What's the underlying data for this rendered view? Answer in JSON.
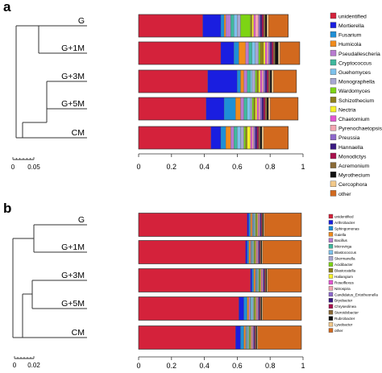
{
  "palette": {
    "unidentified": "#d4223b",
    "Mortierella": "#1a1ee0",
    "Fusarium": "#1f8fd6",
    "Humicola": "#f08b1c",
    "Pseudallescheria": "#b87ad0",
    "Cryptococcus": "#3fb89d",
    "Guehomyces": "#7dc2ec",
    "Monographella": "#a7a7d2",
    "Wardomyces": "#7dd414",
    "Schizothecium": "#8e7f1c",
    "Nectria": "#f7f22a",
    "Chaetomium": "#e455d2",
    "Pyrenochaetopsis": "#f3a6b2",
    "Preussia": "#8d68cc",
    "Hannaella": "#3a1a82",
    "Monodictys": "#a80f4c",
    "Acremonium": "#8a6a36",
    "Myrothecium": "#111111",
    "Cercophora": "#f2c98a",
    "other": "#d2691e",
    "Arthrobacter": "#1a1ee0",
    "Sphingomonas": "#1f8fd6",
    "Gaiella": "#f08b1c",
    "Bacillus": "#b87ad0",
    "Microvirga": "#3fb89d",
    "Blastococcus": "#7dc2ec",
    "Skermanella": "#a7a7d2",
    "Acidibacter": "#7dd414",
    "Blastocatella": "#8e7f1c",
    "Haliangium": "#f7f22a",
    "Roseiflexus": "#e455d2",
    "Nitrospira": "#f3a6b2",
    "Candidatus_Entotheonella": "#8d68cc",
    "Bryobacter": "#3a1a82",
    "Chryseolinea": "#a80f4c",
    "Steroidobacter": "#8a6a36",
    "Rubrobacter": "#111111",
    "Lysobacter": "#f2c98a"
  },
  "panels": {
    "a": {
      "letter": "a",
      "tree_scale": {
        "start": "0",
        "end": "0.05"
      },
      "chart_data": {
        "type": "bar",
        "orientation": "horizontal",
        "stacked": true,
        "title": "",
        "xlabel": "",
        "ylabel": "",
        "xlim": [
          0,
          1
        ],
        "x_ticks": [
          "0",
          "0.2",
          "0.4",
          "0.6",
          "0.8",
          "1"
        ],
        "categories": [
          "G",
          "G+1M",
          "G+3M",
          "G+5M",
          "CM"
        ],
        "legend_position": "right",
        "series": [
          {
            "name": "unidentified",
            "values": [
              0.39,
              0.5,
              0.42,
              0.41,
              0.44
            ]
          },
          {
            "name": "Mortierella",
            "values": [
              0.11,
              0.08,
              0.18,
              0.11,
              0.06
            ]
          },
          {
            "name": "Fusarium",
            "values": [
              0.02,
              0.03,
              0.02,
              0.07,
              0.03
            ]
          },
          {
            "name": "Humicola",
            "values": [
              0.01,
              0.04,
              0.02,
              0.03,
              0.03
            ]
          },
          {
            "name": "Pseudallescheria",
            "values": [
              0.03,
              0.02,
              0.02,
              0.02,
              0.02
            ]
          },
          {
            "name": "Cryptococcus",
            "values": [
              0.02,
              0.02,
              0.02,
              0.02,
              0.02
            ]
          },
          {
            "name": "Guehomyces",
            "values": [
              0.02,
              0.02,
              0.01,
              0.02,
              0.02
            ]
          },
          {
            "name": "Monographella",
            "values": [
              0.02,
              0.02,
              0.02,
              0.01,
              0.02
            ]
          },
          {
            "name": "Wardomyces",
            "values": [
              0.06,
              0.01,
              0.01,
              0.01,
              0.01
            ]
          },
          {
            "name": "Schizothecium",
            "values": [
              0.01,
              0.02,
              0.01,
              0.01,
              0.01
            ]
          },
          {
            "name": "Nectria",
            "values": [
              0.01,
              0.01,
              0.01,
              0.01,
              0.02
            ]
          },
          {
            "name": "Chaetomium",
            "values": [
              0.01,
              0.01,
              0.01,
              0.01,
              0.01
            ]
          },
          {
            "name": "Pyrenochaetopsis",
            "values": [
              0.02,
              0.01,
              0.01,
              0.01,
              0.01
            ]
          },
          {
            "name": "Preussia",
            "values": [
              0.01,
              0.01,
              0.01,
              0.01,
              0.01
            ]
          },
          {
            "name": "Hannaella",
            "values": [
              0.01,
              0.01,
              0.01,
              0.01,
              0.01
            ]
          },
          {
            "name": "Monodictys",
            "values": [
              0.01,
              0.01,
              0.01,
              0.01,
              0.01
            ]
          },
          {
            "name": "Acremonium",
            "values": [
              0.01,
              0.01,
              0.01,
              0.01,
              0.01
            ]
          },
          {
            "name": "Myrothecium",
            "values": [
              0.01,
              0.02,
              0.01,
              0.01,
              0.01
            ]
          },
          {
            "name": "Cercophora",
            "values": [
              0.01,
              0.01,
              0.01,
              0.01,
              0.01
            ]
          },
          {
            "name": "other",
            "values": [
              0.12,
              0.12,
              0.14,
              0.17,
              0.15
            ]
          }
        ]
      }
    },
    "b": {
      "letter": "b",
      "tree_scale": {
        "start": "0",
        "end": "0.02"
      },
      "chart_data": {
        "type": "bar",
        "orientation": "horizontal",
        "stacked": true,
        "title": "",
        "xlabel": "",
        "ylabel": "",
        "xlim": [
          0,
          1
        ],
        "x_ticks": [
          "0",
          "0.2",
          "0.4",
          "0.6",
          "0.8",
          "1"
        ],
        "categories": [
          "G",
          "G+1M",
          "G+3M",
          "G+5M",
          "CM"
        ],
        "legend_position": "right",
        "series": [
          {
            "name": "unidentified",
            "values": [
              0.66,
              0.65,
              0.68,
              0.61,
              0.59
            ]
          },
          {
            "name": "Arthrobacter",
            "values": [
              0.01,
              0.01,
              0.01,
              0.03,
              0.03
            ]
          },
          {
            "name": "Sphingomonas",
            "values": [
              0.01,
              0.01,
              0.01,
              0.02,
              0.02
            ]
          },
          {
            "name": "Gaiella",
            "values": [
              0.01,
              0.01,
              0.01,
              0.01,
              0.01
            ]
          },
          {
            "name": "Bacillus",
            "values": [
              0.005,
              0.005,
              0.005,
              0.01,
              0.005
            ]
          },
          {
            "name": "Microvirga",
            "values": [
              0.005,
              0.005,
              0.005,
              0.005,
              0.005
            ]
          },
          {
            "name": "Blastococcus",
            "values": [
              0.005,
              0.005,
              0.005,
              0.01,
              0.005
            ]
          },
          {
            "name": "Skermanella",
            "values": [
              0.005,
              0.005,
              0.005,
              0.005,
              0.005
            ]
          },
          {
            "name": "Acidibacter",
            "values": [
              0.005,
              0.005,
              0.005,
              0.005,
              0.005
            ]
          },
          {
            "name": "Blastocatella",
            "values": [
              0.005,
              0.005,
              0.005,
              0.005,
              0.005
            ]
          },
          {
            "name": "Haliangium",
            "values": [
              0.005,
              0.005,
              0.005,
              0.005,
              0.005
            ]
          },
          {
            "name": "Roseiflexus",
            "values": [
              0.005,
              0.005,
              0.005,
              0.005,
              0.005
            ]
          },
          {
            "name": "Nitrospira",
            "values": [
              0.005,
              0.005,
              0.005,
              0.005,
              0.005
            ]
          },
          {
            "name": "Candidatus_Entotheonella",
            "values": [
              0.005,
              0.005,
              0.005,
              0.005,
              0.005
            ]
          },
          {
            "name": "Bryobacter",
            "values": [
              0.005,
              0.005,
              0.005,
              0.005,
              0.005
            ]
          },
          {
            "name": "Chryseolinea",
            "values": [
              0.005,
              0.005,
              0.005,
              0.005,
              0.005
            ]
          },
          {
            "name": "Steroidobacter",
            "values": [
              0.005,
              0.005,
              0.005,
              0.005,
              0.005
            ]
          },
          {
            "name": "Rubrobacter",
            "values": [
              0.005,
              0.005,
              0.005,
              0.005,
              0.005
            ]
          },
          {
            "name": "Lysobacter",
            "values": [
              0.005,
              0.005,
              0.005,
              0.005,
              0.005
            ]
          },
          {
            "name": "other",
            "values": [
              0.225,
              0.235,
              0.205,
              0.235,
              0.265
            ]
          }
        ]
      }
    }
  }
}
